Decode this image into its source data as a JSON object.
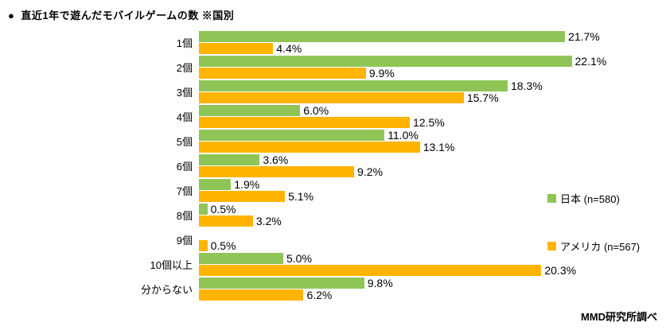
{
  "header": {
    "bullet": "●",
    "title": "直近1年で遊んだモバイルゲームの数 ※国別"
  },
  "footer": {
    "source": "MMD研究所調べ"
  },
  "chart_data": {
    "type": "bar",
    "orientation": "horizontal",
    "title": "直近1年で遊んだモバイルゲームの数 ※国別",
    "categories": [
      "1個",
      "2個",
      "3個",
      "4個",
      "5個",
      "6個",
      "7個",
      "8個",
      "9個",
      "10個以上",
      "分からない"
    ],
    "series": [
      {
        "key": "japan",
        "name": "日本 (n=580)",
        "color": "#8fc556",
        "values": [
          21.7,
          22.1,
          18.3,
          6.0,
          11.0,
          3.6,
          1.9,
          0.5,
          null,
          5.0,
          9.8
        ]
      },
      {
        "key": "america",
        "name": "アメリカ (n=567)",
        "color": "#ffb400",
        "values": [
          4.4,
          9.9,
          15.7,
          12.5,
          13.1,
          9.2,
          5.1,
          3.2,
          0.5,
          20.3,
          6.2
        ]
      }
    ],
    "xmax": 25,
    "value_suffix": "%",
    "value_decimals": 1,
    "grid": false,
    "legend_position": "right"
  }
}
